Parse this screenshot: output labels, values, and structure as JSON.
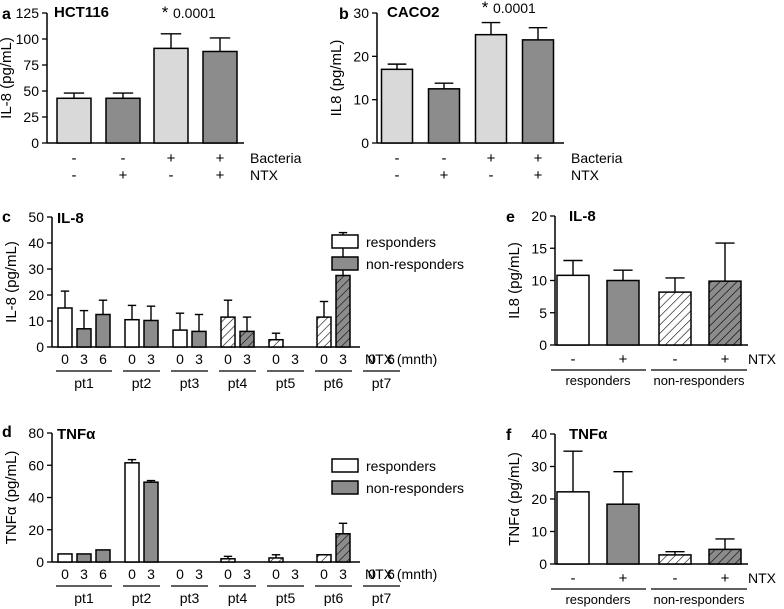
{
  "chart_data": [
    {
      "panel": "a",
      "type": "bar",
      "title": "HCT116",
      "ylabel": "IL-8 (pg/mL)",
      "ylim": [
        0,
        125
      ],
      "yticks": [
        0,
        25,
        50,
        75,
        100,
        125
      ],
      "values": [
        43,
        43,
        91,
        88
      ],
      "errors": [
        5,
        5,
        14,
        13
      ],
      "colors": [
        "#d9d9d9",
        "#8c8c8c",
        "#d9d9d9",
        "#8c8c8c"
      ],
      "rows": [
        {
          "name": "Bacteria",
          "marks": [
            "-",
            "-",
            "+",
            "+"
          ]
        },
        {
          "name": "NTX",
          "marks": [
            "-",
            "+",
            "-",
            "+"
          ]
        }
      ],
      "annotations": [
        {
          "star": "*",
          "text": "0.0001",
          "bar": 2
        }
      ]
    },
    {
      "panel": "b",
      "type": "bar",
      "title": "CACO2",
      "ylabel": "IL8 (pg/mL)",
      "ylim": [
        0,
        30
      ],
      "yticks": [
        0,
        10,
        20,
        30
      ],
      "values": [
        17,
        12.5,
        25,
        23.8
      ],
      "errors": [
        1.2,
        1.3,
        2.8,
        2.8
      ],
      "colors": [
        "#d9d9d9",
        "#8c8c8c",
        "#d9d9d9",
        "#8c8c8c"
      ],
      "rows": [
        {
          "name": "Bacteria",
          "marks": [
            "-",
            "-",
            "+",
            "+"
          ]
        },
        {
          "name": "NTX",
          "marks": [
            "-",
            "+",
            "-",
            "+"
          ]
        }
      ],
      "annotations": [
        {
          "star": "*",
          "text": "0.0001",
          "bar": 2
        }
      ]
    },
    {
      "panel": "c",
      "type": "bar",
      "title": "IL-8",
      "ylabel": "IL-8 (pg/mL)",
      "ylim": [
        0,
        50
      ],
      "yticks": [
        0,
        10,
        20,
        30,
        40,
        50
      ],
      "xlabel": "NTX (mnth)",
      "legend": [
        "responders",
        "non-responders"
      ],
      "groups": [
        {
          "label": "pt1",
          "style": "resp",
          "months": [
            "0",
            "3",
            "6"
          ],
          "values": [
            15,
            7,
            12.5
          ],
          "errors": [
            6.5,
            7,
            5.5
          ]
        },
        {
          "label": "pt2",
          "style": "resp",
          "months": [
            "0",
            "3"
          ],
          "values": [
            10.5,
            10.2
          ],
          "errors": [
            5.5,
            5.5
          ]
        },
        {
          "label": "pt3",
          "style": "resp",
          "months": [
            "0",
            "3"
          ],
          "values": [
            6.5,
            6
          ],
          "errors": [
            6.5,
            6.5
          ]
        },
        {
          "label": "pt4",
          "style": "nonresp",
          "months": [
            "0",
            "3"
          ],
          "values": [
            11.5,
            6
          ],
          "errors": [
            6.5,
            5.5
          ]
        },
        {
          "label": "pt5",
          "style": "nonresp",
          "months": [
            "0",
            "3"
          ],
          "values": [
            2.8,
            0
          ],
          "errors": [
            2.5,
            0
          ]
        },
        {
          "label": "pt6",
          "style": "nonresp",
          "months": [
            "0",
            "3"
          ],
          "values": [
            11.5,
            27.5
          ],
          "errors": [
            6,
            16.5
          ]
        },
        {
          "label": "pt7",
          "style": "nonresp",
          "months": [
            "0",
            "6"
          ],
          "values": [
            0,
            0
          ],
          "errors": [
            0,
            0
          ]
        }
      ]
    },
    {
      "panel": "d",
      "type": "bar",
      "title": "TNFα",
      "ylabel": "TNFα (pg/mL)",
      "ylim": [
        0,
        80
      ],
      "yticks": [
        0,
        20,
        40,
        60,
        80
      ],
      "xlabel": "NTX (mnth)",
      "legend": [
        "responders",
        "non-responders"
      ],
      "groups": [
        {
          "label": "pt1",
          "style": "resp",
          "months": [
            "0",
            "3",
            "6"
          ],
          "values": [
            5,
            5,
            7.5
          ],
          "errors": [
            0,
            0,
            0
          ]
        },
        {
          "label": "pt2",
          "style": "resp",
          "months": [
            "0",
            "3"
          ],
          "values": [
            61.5,
            49.5
          ],
          "errors": [
            2,
            1
          ]
        },
        {
          "label": "pt3",
          "style": "resp",
          "months": [
            "0",
            "3"
          ],
          "values": [
            0,
            0
          ],
          "errors": [
            0,
            0
          ]
        },
        {
          "label": "pt4",
          "style": "nonresp",
          "months": [
            "0",
            "3"
          ],
          "values": [
            2,
            0
          ],
          "errors": [
            1.5,
            0
          ]
        },
        {
          "label": "pt5",
          "style": "nonresp",
          "months": [
            "0",
            "3"
          ],
          "values": [
            2.5,
            0
          ],
          "errors": [
            2,
            0
          ]
        },
        {
          "label": "pt6",
          "style": "nonresp",
          "months": [
            "0",
            "3"
          ],
          "values": [
            4.5,
            17.5
          ],
          "errors": [
            0,
            6.5
          ]
        },
        {
          "label": "pt7",
          "style": "nonresp",
          "months": [
            "0",
            "6"
          ],
          "values": [
            0,
            0
          ],
          "errors": [
            0,
            0
          ]
        }
      ]
    },
    {
      "panel": "e",
      "type": "bar",
      "title": "IL-8",
      "ylabel": "IL8 (pg/mL)",
      "ylim": [
        0,
        20
      ],
      "yticks": [
        0,
        5,
        10,
        15,
        20
      ],
      "values": [
        10.8,
        10,
        8.2,
        9.9
      ],
      "errors": [
        2.3,
        1.6,
        2.2,
        5.9
      ],
      "styles": [
        "white",
        "gray",
        "hatch-white",
        "hatch-gray"
      ],
      "marks": [
        "-",
        "+",
        "-",
        "+"
      ],
      "row_label": "NTX",
      "groups": [
        "responders",
        "non-responders"
      ]
    },
    {
      "panel": "f",
      "type": "bar",
      "title": "TNFα",
      "ylabel": "TNFα (pg/mL)",
      "ylim": [
        0,
        40
      ],
      "yticks": [
        0,
        10,
        20,
        30,
        40
      ],
      "values": [
        22.2,
        18.4,
        2.8,
        4.5
      ],
      "errors": [
        12.5,
        10,
        1,
        3.2
      ],
      "styles": [
        "white",
        "gray",
        "hatch-white",
        "hatch-gray"
      ],
      "marks": [
        "-",
        "+",
        "-",
        "+"
      ],
      "row_label": "NTX",
      "groups": [
        "responders",
        "non-responders"
      ]
    }
  ]
}
